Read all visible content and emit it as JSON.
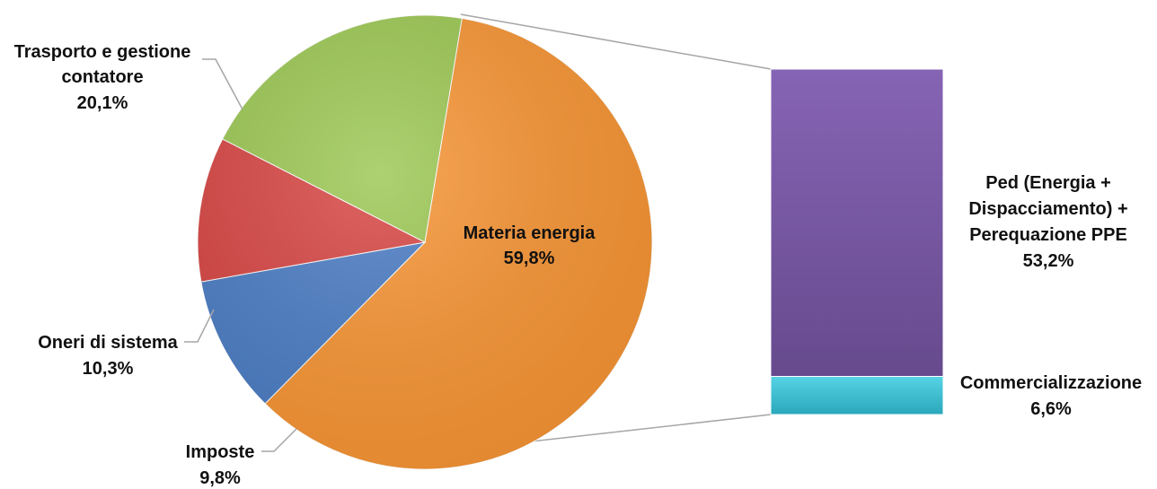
{
  "chart_data": {
    "type": "bar-of-pie",
    "pie": {
      "start_angle_deg": -80.6,
      "slices": [
        {
          "key": "materia",
          "label": "Materia energia",
          "value": 59.8,
          "value_label": "59,8%",
          "color": "#f79433",
          "label_inside": true
        },
        {
          "key": "imposte",
          "label": "Imposte",
          "value": 9.8,
          "value_label": "9,8%",
          "color": "#4a7cc4"
        },
        {
          "key": "oneri",
          "label": "Oneri di sistema",
          "value": 10.3,
          "value_label": "10,3%",
          "color": "#d74442"
        },
        {
          "key": "trasporto",
          "label": "Trasporto e gestione contatore",
          "label_lines": [
            "Trasporto e gestione",
            "contatore"
          ],
          "value": 20.1,
          "value_label": "20,1%",
          "color": "#9bc752"
        }
      ]
    },
    "bar": {
      "segments": [
        {
          "key": "ped",
          "label_lines": [
            "Ped (Energia +",
            "Dispacciamento) +",
            "Perequazione PPE"
          ],
          "value": 53.2,
          "value_label": "53,2%",
          "color": "#7b5aa6"
        },
        {
          "key": "comm",
          "label_lines": [
            "Commercializzazione"
          ],
          "value": 6.6,
          "value_label": "6,6%",
          "color": "#3cc3d6"
        }
      ]
    }
  }
}
